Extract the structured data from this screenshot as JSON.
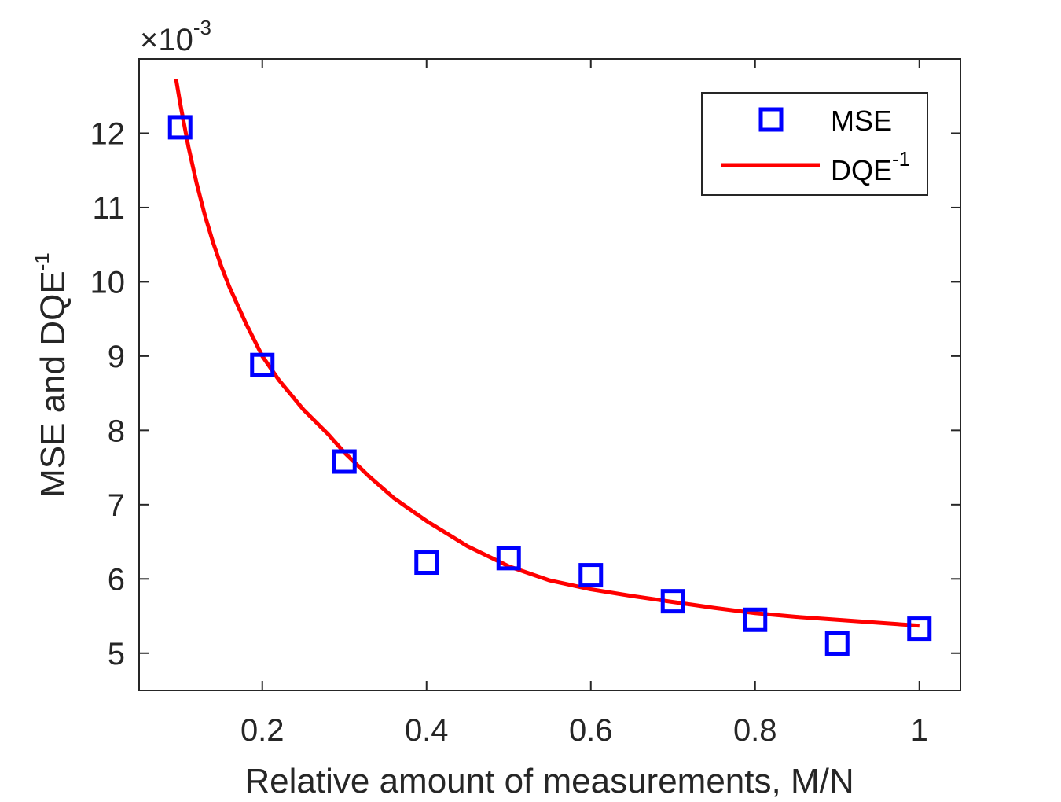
{
  "chart_data": {
    "type": "scatter",
    "xlabel": "Relative amount of measurements, M/N",
    "ylabel": "MSE and DQE",
    "ylabel_sup": "-1",
    "xlim": [
      0.05,
      1.05
    ],
    "ylim": [
      4.5,
      13.0
    ],
    "y_multiplier": {
      "prefix": "×10",
      "exponent": "-3"
    },
    "x_ticks": [
      {
        "value": 0.2,
        "label": "0.2"
      },
      {
        "value": 0.4,
        "label": "0.4"
      },
      {
        "value": 0.6,
        "label": "0.6"
      },
      {
        "value": 0.8,
        "label": "0.8"
      },
      {
        "value": 1.0,
        "label": "1"
      }
    ],
    "y_ticks": [
      {
        "value": 5,
        "label": "5"
      },
      {
        "value": 6,
        "label": "6"
      },
      {
        "value": 7,
        "label": "7"
      },
      {
        "value": 8,
        "label": "8"
      },
      {
        "value": 9,
        "label": "9"
      },
      {
        "value": 10,
        "label": "10"
      },
      {
        "value": 11,
        "label": "11"
      },
      {
        "value": 12,
        "label": "12"
      }
    ],
    "grid": false,
    "legend": {
      "position": "top-right",
      "entries": [
        {
          "label": "MSE",
          "sup": "",
          "marker": "square"
        },
        {
          "label": "DQE",
          "sup": "-1",
          "marker": "line"
        }
      ]
    },
    "series": [
      {
        "name": "MSE",
        "style": "markers",
        "marker": "square",
        "color": "#0000ff",
        "x": [
          0.1,
          0.2,
          0.3,
          0.4,
          0.5,
          0.6,
          0.7,
          0.8,
          0.9,
          1.0
        ],
        "y": [
          12.08,
          8.88,
          7.58,
          6.22,
          6.28,
          6.05,
          5.7,
          5.45,
          5.13,
          5.33
        ]
      },
      {
        "name": "DQE-1",
        "style": "line",
        "color": "#ff0000",
        "x": [
          0.095,
          0.1,
          0.11,
          0.12,
          0.13,
          0.14,
          0.15,
          0.16,
          0.18,
          0.2,
          0.22,
          0.25,
          0.28,
          0.3,
          0.33,
          0.36,
          0.4,
          0.45,
          0.5,
          0.55,
          0.6,
          0.65,
          0.7,
          0.75,
          0.8,
          0.85,
          0.9,
          0.95,
          1.0
        ],
        "y": [
          12.73,
          12.4,
          11.82,
          11.33,
          10.9,
          10.53,
          10.21,
          9.93,
          9.44,
          9.0,
          8.68,
          8.28,
          7.95,
          7.7,
          7.38,
          7.09,
          6.78,
          6.44,
          6.17,
          5.98,
          5.86,
          5.77,
          5.69,
          5.61,
          5.54,
          5.49,
          5.45,
          5.41,
          5.37
        ]
      }
    ]
  }
}
